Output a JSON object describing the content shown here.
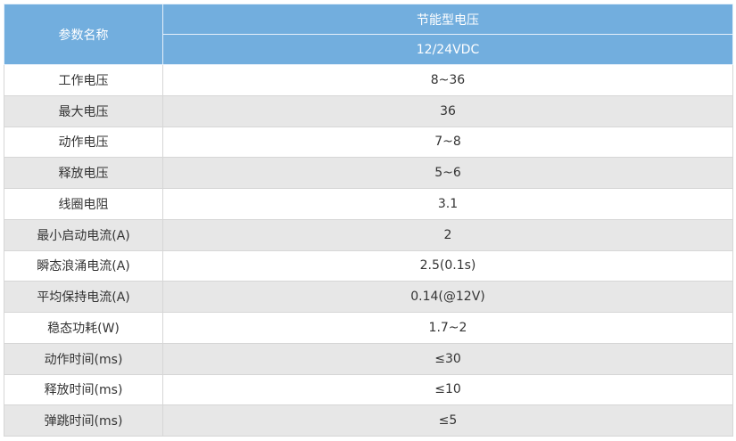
{
  "header": {
    "param_label": "参数名称",
    "type": "节能型电压",
    "spec": "12/24VDC"
  },
  "table": {
    "rows": [
      [
        "工作电压",
        "8~36"
      ],
      [
        "最大电压",
        "36"
      ],
      [
        "动作电压",
        "7~8"
      ],
      [
        "释放电压",
        "5~6"
      ],
      [
        "线圈电阻",
        "3.1"
      ],
      [
        "最小启动电流(A)",
        "2"
      ],
      [
        "瞬态浪涌电流(A)",
        "2.5(0.1s)"
      ],
      [
        "平均保持电流(A)",
        "0.14(@12V)"
      ],
      [
        "稳态功耗(W)",
        "1.7~2"
      ],
      [
        "动作时间(ms)",
        "≤30"
      ],
      [
        "释放时间(ms)",
        "≤10"
      ],
      [
        "弹跳时间(ms)",
        "≤5"
      ]
    ]
  }
}
